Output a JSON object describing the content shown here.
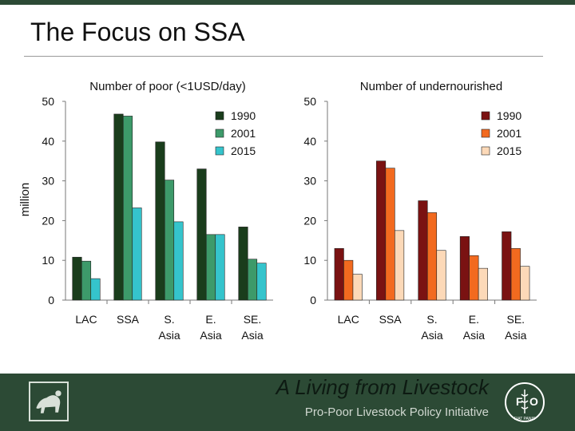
{
  "slide": {
    "title": "The Focus on SSA"
  },
  "footer": {
    "tagline": "A Living from Livestock",
    "subtitle": "Pro-Poor Livestock Policy Initiative",
    "left_logo_icon": "livestock-logo-icon",
    "right_logo_icon": "fao-logo-icon",
    "right_logo_text": "FIAT PANIS"
  },
  "colors": {
    "accent_dark_green": "#2c4a35"
  },
  "chart_data": [
    {
      "type": "bar",
      "title": "Number of poor (<1USD/day)",
      "ylabel": "million",
      "ylim": [
        0,
        50
      ],
      "yticks": [
        "0",
        "10",
        "20",
        "30",
        "40",
        "50"
      ],
      "categories": [
        [
          "LAC"
        ],
        [
          "SSA"
        ],
        [
          "S.",
          "Asia"
        ],
        [
          "E.",
          "Asia"
        ],
        [
          "SE.",
          "Asia"
        ]
      ],
      "legend": "top-right",
      "grid": false,
      "series": [
        {
          "name": "1990",
          "color": "#1a3d1c",
          "values": [
            10.8,
            46.8,
            39.8,
            33.0,
            18.4
          ]
        },
        {
          "name": "2001",
          "color": "#3d9a6a",
          "values": [
            9.8,
            46.3,
            30.2,
            16.5,
            10.3
          ]
        },
        {
          "name": "2015",
          "color": "#35c4cc",
          "values": [
            5.4,
            23.2,
            19.7,
            16.5,
            9.3
          ]
        }
      ]
    },
    {
      "type": "bar",
      "title": "Number of undernourished",
      "ylim": [
        0,
        50
      ],
      "yticks": [
        "0",
        "10",
        "20",
        "30",
        "40",
        "50"
      ],
      "categories": [
        [
          "LAC"
        ],
        [
          "SSA"
        ],
        [
          "S.",
          "Asia"
        ],
        [
          "E.",
          "Asia"
        ],
        [
          "SE.",
          "Asia"
        ]
      ],
      "legend": "top-right",
      "grid": false,
      "series": [
        {
          "name": "1990",
          "color": "#7a1212",
          "values": [
            13.0,
            35.0,
            25.0,
            16.0,
            17.2
          ]
        },
        {
          "name": "2001",
          "color": "#f26a1f",
          "values": [
            10.0,
            33.2,
            22.0,
            11.2,
            13.0
          ]
        },
        {
          "name": "2015",
          "color": "#fcd9b8",
          "values": [
            6.5,
            17.5,
            12.5,
            8.0,
            8.5
          ]
        }
      ]
    }
  ]
}
